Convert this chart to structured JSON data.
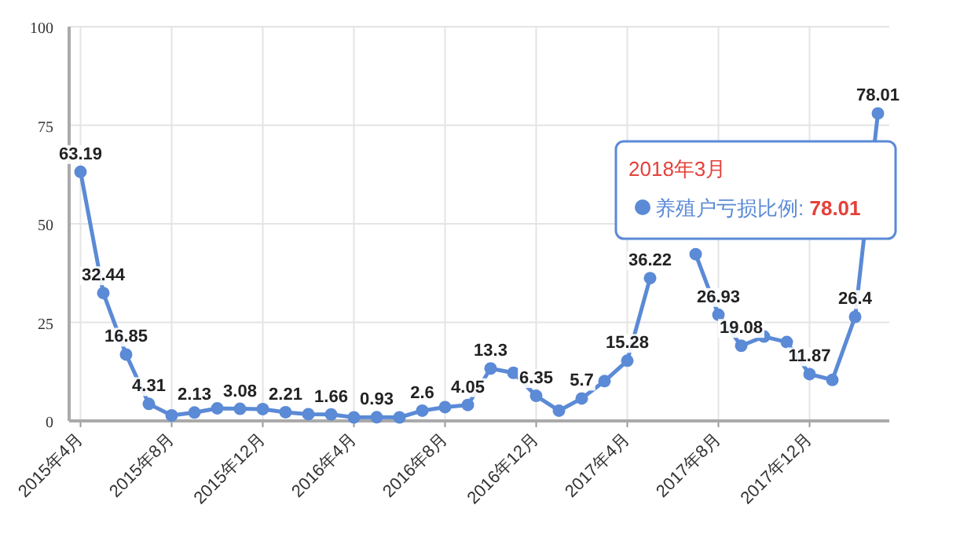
{
  "chart_data": {
    "type": "line",
    "categories": [
      "2015年4月",
      null,
      null,
      null,
      "2015年8月",
      null,
      null,
      null,
      "2015年12月",
      null,
      null,
      null,
      "2016年4月",
      null,
      null,
      null,
      "2016年8月",
      null,
      null,
      null,
      "2016年12月",
      null,
      null,
      null,
      "2017年4月",
      null,
      null,
      null,
      "2017年8月",
      null,
      null,
      null,
      "2017年12月",
      null,
      null,
      null
    ],
    "series": [
      {
        "color": "#5b8ad6",
        "values": [
          63.19,
          32.44,
          16.85,
          4.31,
          1.4,
          2.13,
          3.2,
          3.08,
          3.0,
          2.21,
          1.7,
          1.66,
          0.9,
          0.93,
          0.9,
          2.6,
          3.5,
          4.05,
          13.3,
          12.2,
          6.35,
          2.6,
          5.7,
          10.1,
          15.28,
          36.22,
          null,
          42.3,
          26.93,
          19.08,
          21.4,
          20.0,
          11.87,
          10.4,
          26.4,
          78.01
        ],
        "value_labels": [
          "63.19",
          "32.44",
          "16.85",
          "4.31",
          null,
          "2.13",
          null,
          "3.08",
          null,
          "2.21",
          null,
          "1.66",
          null,
          "0.93",
          null,
          "2.6",
          null,
          "4.05",
          "13.3",
          null,
          "6.35",
          null,
          "5.7",
          null,
          "15.28",
          "36.22",
          null,
          null,
          "26.93",
          "19.08",
          null,
          null,
          "11.87",
          null,
          "26.4",
          "78.01"
        ]
      }
    ],
    "ylim": [
      0,
      100
    ],
    "yticks": [
      0,
      25,
      50,
      75,
      100
    ],
    "grid": true,
    "marker": "circle",
    "line_style": "solid",
    "annotations": [
      "2018年3月",
      "养殖户亏损比例: 78.01"
    ]
  }
}
